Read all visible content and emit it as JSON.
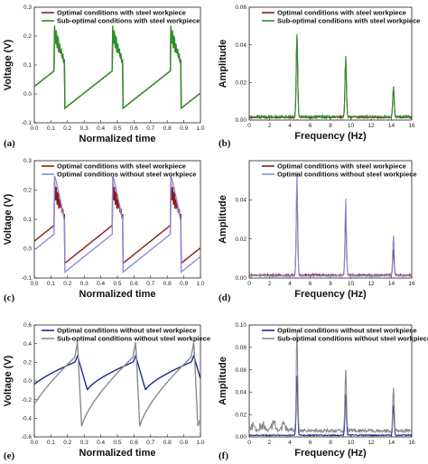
{
  "colors": {
    "red": "#8b1a1a",
    "green": "#2f8f2f",
    "navy": "#1a2a8f",
    "periwinkle": "#8c8cd8",
    "gray": "#8a8a8a"
  },
  "chart_data": [
    {
      "panel": "(a)",
      "type": "line",
      "xlabel": "Normalized time",
      "ylabel": "Voltage (V)",
      "xlim": [
        0,
        1.0
      ],
      "ylim": [
        -0.1,
        0.3
      ],
      "xticks": [
        0.0,
        0.1,
        0.2,
        0.3,
        0.4,
        0.5,
        0.6,
        0.7,
        0.8,
        0.9,
        1.0
      ],
      "yticks": [
        -0.1,
        0.0,
        0.1,
        0.2,
        0.3
      ],
      "series": [
        {
          "name": "Optimal conditions with steel workpiece",
          "color": "#8b1a1a",
          "shape": "wave",
          "lo": -0.05,
          "hi": 0.08,
          "peak": 0.2,
          "period": 0.35,
          "phase": 0.12,
          "duty": 0.18,
          "jag": 0.02
        },
        {
          "name": "Sub-optimal conditions with steel workpiece",
          "color": "#2f8f2f",
          "shape": "wave",
          "lo": -0.05,
          "hi": 0.08,
          "peak": 0.21,
          "period": 0.35,
          "phase": 0.12,
          "duty": 0.18,
          "jag": 0.03
        }
      ]
    },
    {
      "panel": "(b)",
      "type": "line",
      "xlabel": "Frequency (Hz)",
      "ylabel": "Amplitude",
      "xlim": [
        0,
        16
      ],
      "ylim": [
        0,
        0.06
      ],
      "xticks": [
        0,
        2,
        4,
        6,
        8,
        10,
        12,
        14,
        16
      ],
      "yticks": [
        0.0,
        0.02,
        0.04,
        0.06
      ],
      "series": [
        {
          "name": "Optimal conditions with steel workpiece",
          "color": "#8b1a1a",
          "shape": "spectrum",
          "peaks": [
            [
              4.7,
              0.043
            ],
            [
              9.5,
              0.031
            ],
            [
              14.2,
              0.016
            ]
          ],
          "base": 0.001,
          "noise": 0.001
        },
        {
          "name": "Sub-optimal conditions with steel workpiece",
          "color": "#2f8f2f",
          "shape": "spectrum",
          "peaks": [
            [
              4.7,
              0.044
            ],
            [
              9.5,
              0.032
            ],
            [
              14.2,
              0.016
            ]
          ],
          "base": 0.0012,
          "noise": 0.0012
        }
      ]
    },
    {
      "panel": "(c)",
      "type": "line",
      "xlabel": "Normalized time",
      "ylabel": "Voltage (V)",
      "xlim": [
        0,
        1.0
      ],
      "ylim": [
        -0.1,
        0.3
      ],
      "xticks": [
        0.0,
        0.1,
        0.2,
        0.3,
        0.4,
        0.5,
        0.6,
        0.7,
        0.8,
        0.9,
        1.0
      ],
      "yticks": [
        -0.1,
        0.0,
        0.1,
        0.2,
        0.3
      ],
      "series": [
        {
          "name": "Optimal conditions with steel workpiece",
          "color": "#8b1a1a",
          "shape": "wave",
          "lo": -0.05,
          "hi": 0.08,
          "peak": 0.2,
          "period": 0.35,
          "phase": 0.12,
          "duty": 0.18,
          "jag": 0.03
        },
        {
          "name": "Optimal conditions without steel workpiece",
          "color": "#8c8cd8",
          "shape": "wave",
          "lo": -0.08,
          "hi": 0.05,
          "peak": 0.25,
          "period": 0.35,
          "phase": 0.12,
          "duty": 0.18,
          "jag": 0.0
        }
      ]
    },
    {
      "panel": "(d)",
      "type": "line",
      "xlabel": "Frequency (Hz)",
      "ylabel": "Amplitude",
      "xlim": [
        0,
        16
      ],
      "ylim": [
        0,
        0.06
      ],
      "xticks": [
        0,
        2,
        4,
        6,
        8,
        10,
        12,
        14,
        16
      ],
      "yticks": [
        0.0,
        0.02,
        0.04
      ],
      "series": [
        {
          "name": "Optimal conditions with steel workpiece",
          "color": "#8b1a1a",
          "shape": "spectrum",
          "peaks": [
            [
              4.7,
              0.044
            ],
            [
              9.5,
              0.029
            ],
            [
              14.2,
              0.013
            ]
          ],
          "base": 0.001,
          "noise": 0.001
        },
        {
          "name": "Optimal conditions without steel workpiece",
          "color": "#8c8cd8",
          "shape": "spectrum",
          "peaks": [
            [
              4.7,
              0.053
            ],
            [
              9.5,
              0.039
            ],
            [
              14.2,
              0.021
            ]
          ],
          "base": 0.0008,
          "noise": 0.0008
        }
      ]
    },
    {
      "panel": "(e)",
      "type": "line",
      "xlabel": "Normalized time",
      "ylabel": "Voltage (V)",
      "xlim": [
        0,
        1.0
      ],
      "ylim": [
        -0.6,
        0.6
      ],
      "xticks": [
        0.0,
        0.1,
        0.2,
        0.3,
        0.4,
        0.5,
        0.6,
        0.7,
        0.8,
        0.9,
        1.0
      ],
      "yticks": [
        -0.6,
        -0.4,
        -0.2,
        0.0,
        0.2,
        0.4,
        0.6
      ],
      "series": [
        {
          "name": "Optimal conditions without steel workpiece",
          "color": "#1a2a8f",
          "shape": "saw",
          "lo": -0.1,
          "hi": 0.05,
          "peak": 0.27,
          "period": 0.35,
          "phase": 0.26,
          "rise": 0.02,
          "fall": 0.06
        },
        {
          "name": "Sub-optimal conditions without steel workpiece",
          "color": "#8a8a8a",
          "shape": "saw",
          "lo": -0.5,
          "hi": 0.2,
          "peak": 0.42,
          "period": 0.35,
          "phase": 0.26,
          "rise": 0.015,
          "fall": 0.025,
          "start": -0.45
        }
      ]
    },
    {
      "panel": "(f)",
      "type": "line",
      "xlabel": "Frequency (Hz)",
      "ylabel": "Amplitude",
      "xlim": [
        0,
        16
      ],
      "ylim": [
        0,
        0.1
      ],
      "xticks": [
        0,
        2,
        4,
        6,
        8,
        10,
        12,
        14,
        16
      ],
      "yticks": [
        0.0,
        0.02,
        0.04,
        0.06,
        0.08,
        0.1
      ],
      "series": [
        {
          "name": "Optimal conditions without steel workpiece",
          "color": "#1a2a8f",
          "shape": "spectrum",
          "peaks": [
            [
              4.7,
              0.053
            ],
            [
              9.5,
              0.037
            ],
            [
              14.2,
              0.027
            ]
          ],
          "base": 0.001,
          "noise": 0.001
        },
        {
          "name": "Sub-optimal conditions without steel workpiece",
          "color": "#8a8a8a",
          "shape": "spectrum",
          "peaks": [
            [
              4.7,
              0.088
            ],
            [
              9.5,
              0.055
            ],
            [
              14.2,
              0.038
            ]
          ],
          "base": 0.004,
          "noise": 0.003,
          "lowNoise": 0.012
        }
      ]
    }
  ]
}
